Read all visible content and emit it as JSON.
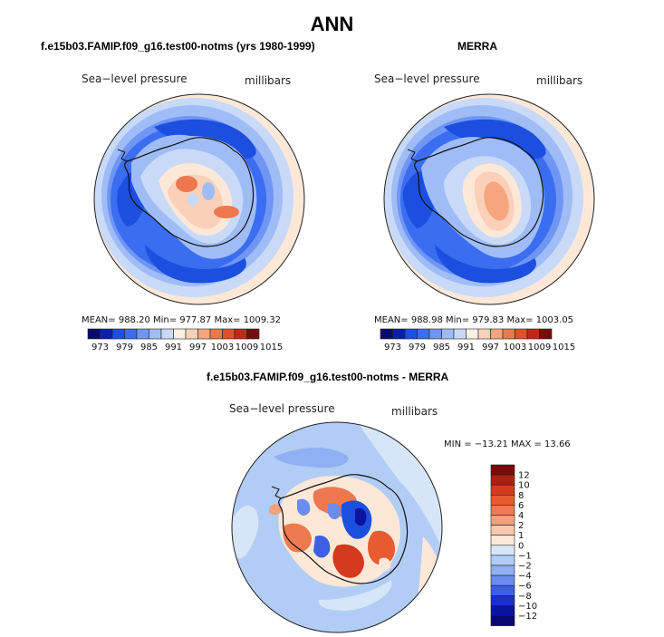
{
  "title": "ANN",
  "panels": [
    {
      "heading": "f.e15b03.FAMIP.f09_g16.test00-notms (yrs 1980-1999)",
      "field": "Sea−level pressure",
      "units": "millibars",
      "stats": "MEAN=  988.20    Min=  977.87    Max=  1009.32"
    },
    {
      "heading": "MERRA",
      "field": "Sea−level pressure",
      "units": "millibars",
      "stats": "MEAN=  988.98    Min=  979.83    Max=  1003.05"
    },
    {
      "heading": "f.e15b03.FAMIP.f09_g16.test00-notms - MERRA",
      "field": "Sea−level pressure",
      "units": "millibars",
      "stats": "MIN = −13.21  MAX =   13.66"
    }
  ],
  "colorbar_main": {
    "labels": [
      "973",
      "979",
      "985",
      "991",
      "997",
      "1003",
      "1009",
      "1015"
    ],
    "colors": [
      "#0a0a6e",
      "#0a1fb0",
      "#1c4fe0",
      "#3a6df0",
      "#6f95f5",
      "#9fbcf7",
      "#c8daf8",
      "#fff0e0",
      "#fbd0b8",
      "#f5a67e",
      "#ef7750",
      "#e0502c",
      "#c0281a",
      "#7a0a0a"
    ]
  },
  "colorbar_diff": {
    "labels": [
      "12",
      "10",
      "8",
      "6",
      "4",
      "2",
      "1",
      "0",
      "−1",
      "−2",
      "−4",
      "−6",
      "−8",
      "−10",
      "−12"
    ],
    "colors": [
      "#7a0a0a",
      "#b01e10",
      "#d43a1e",
      "#e85a30",
      "#f07a50",
      "#f5a07c",
      "#f9c8ae",
      "#fde8d8",
      "#d6e6f8",
      "#b2cdf5",
      "#8fb0f2",
      "#6a8cee",
      "#3c5fe6",
      "#1830c8",
      "#0a14a0",
      "#060870"
    ]
  }
}
